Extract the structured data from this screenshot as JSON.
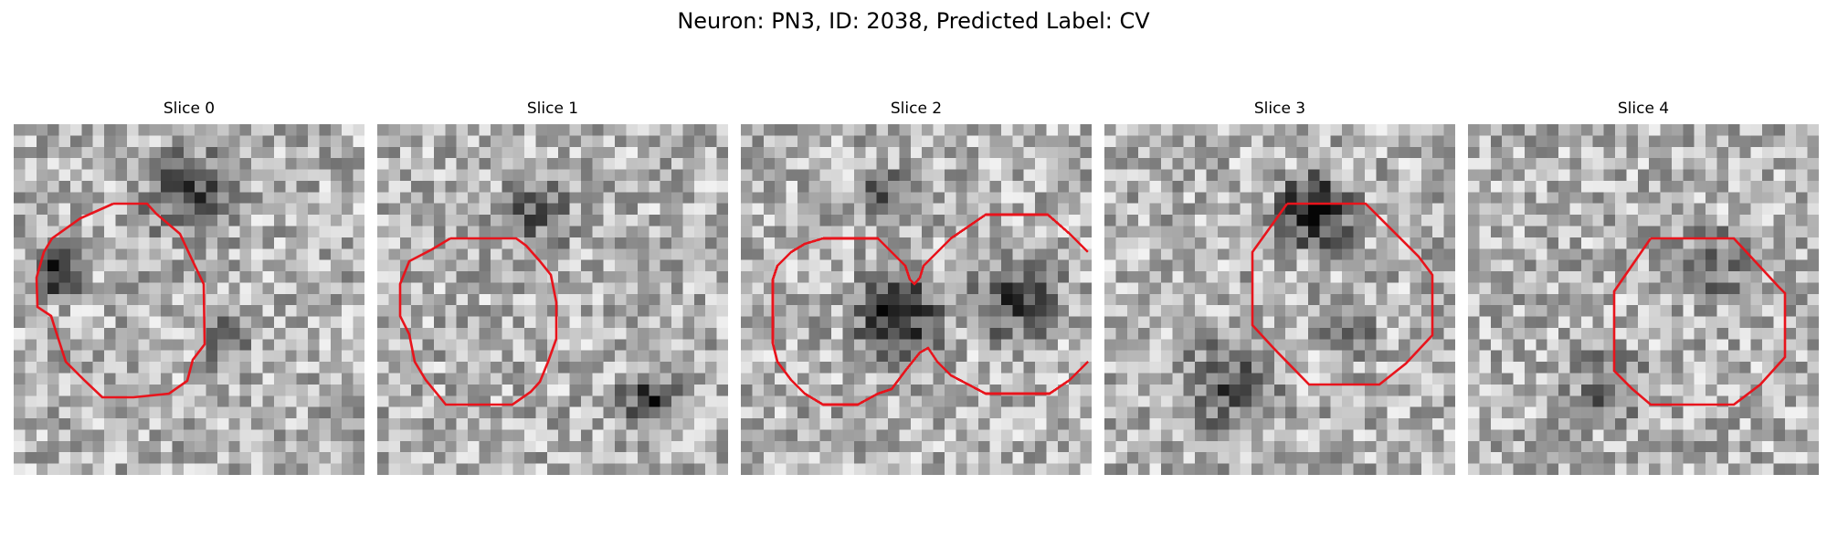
{
  "figure": {
    "suptitle": "Neuron: PN3, ID: 2038, Predicted Label: CV"
  },
  "panels": [
    {
      "title": "Slice 0",
      "seed": 11,
      "darkblobs": [
        [
          0.5,
          0.2,
          0.17,
          0.55
        ],
        [
          0.12,
          0.42,
          0.1,
          0.7
        ],
        [
          0.6,
          0.6,
          0.12,
          0.35
        ]
      ]
    },
    {
      "title": "Slice 1",
      "seed": 23,
      "darkblobs": [
        [
          0.45,
          0.25,
          0.15,
          0.35
        ],
        [
          0.78,
          0.78,
          0.12,
          0.5
        ]
      ]
    },
    {
      "title": "Slice 2",
      "seed": 37,
      "darkblobs": [
        [
          0.45,
          0.55,
          0.18,
          0.6
        ],
        [
          0.78,
          0.5,
          0.18,
          0.45
        ],
        [
          0.4,
          0.2,
          0.1,
          0.4
        ]
      ]
    },
    {
      "title": "Slice 3",
      "seed": 51,
      "darkblobs": [
        [
          0.6,
          0.25,
          0.15,
          0.7
        ],
        [
          0.35,
          0.75,
          0.2,
          0.4
        ],
        [
          0.7,
          0.6,
          0.1,
          0.35
        ]
      ]
    },
    {
      "title": "Slice 4",
      "seed": 67,
      "darkblobs": [
        [
          0.4,
          0.75,
          0.15,
          0.35
        ],
        [
          0.7,
          0.4,
          0.15,
          0.3
        ]
      ]
    }
  ],
  "colors": {
    "contour": "#e8141c",
    "background": "#ffffff"
  }
}
